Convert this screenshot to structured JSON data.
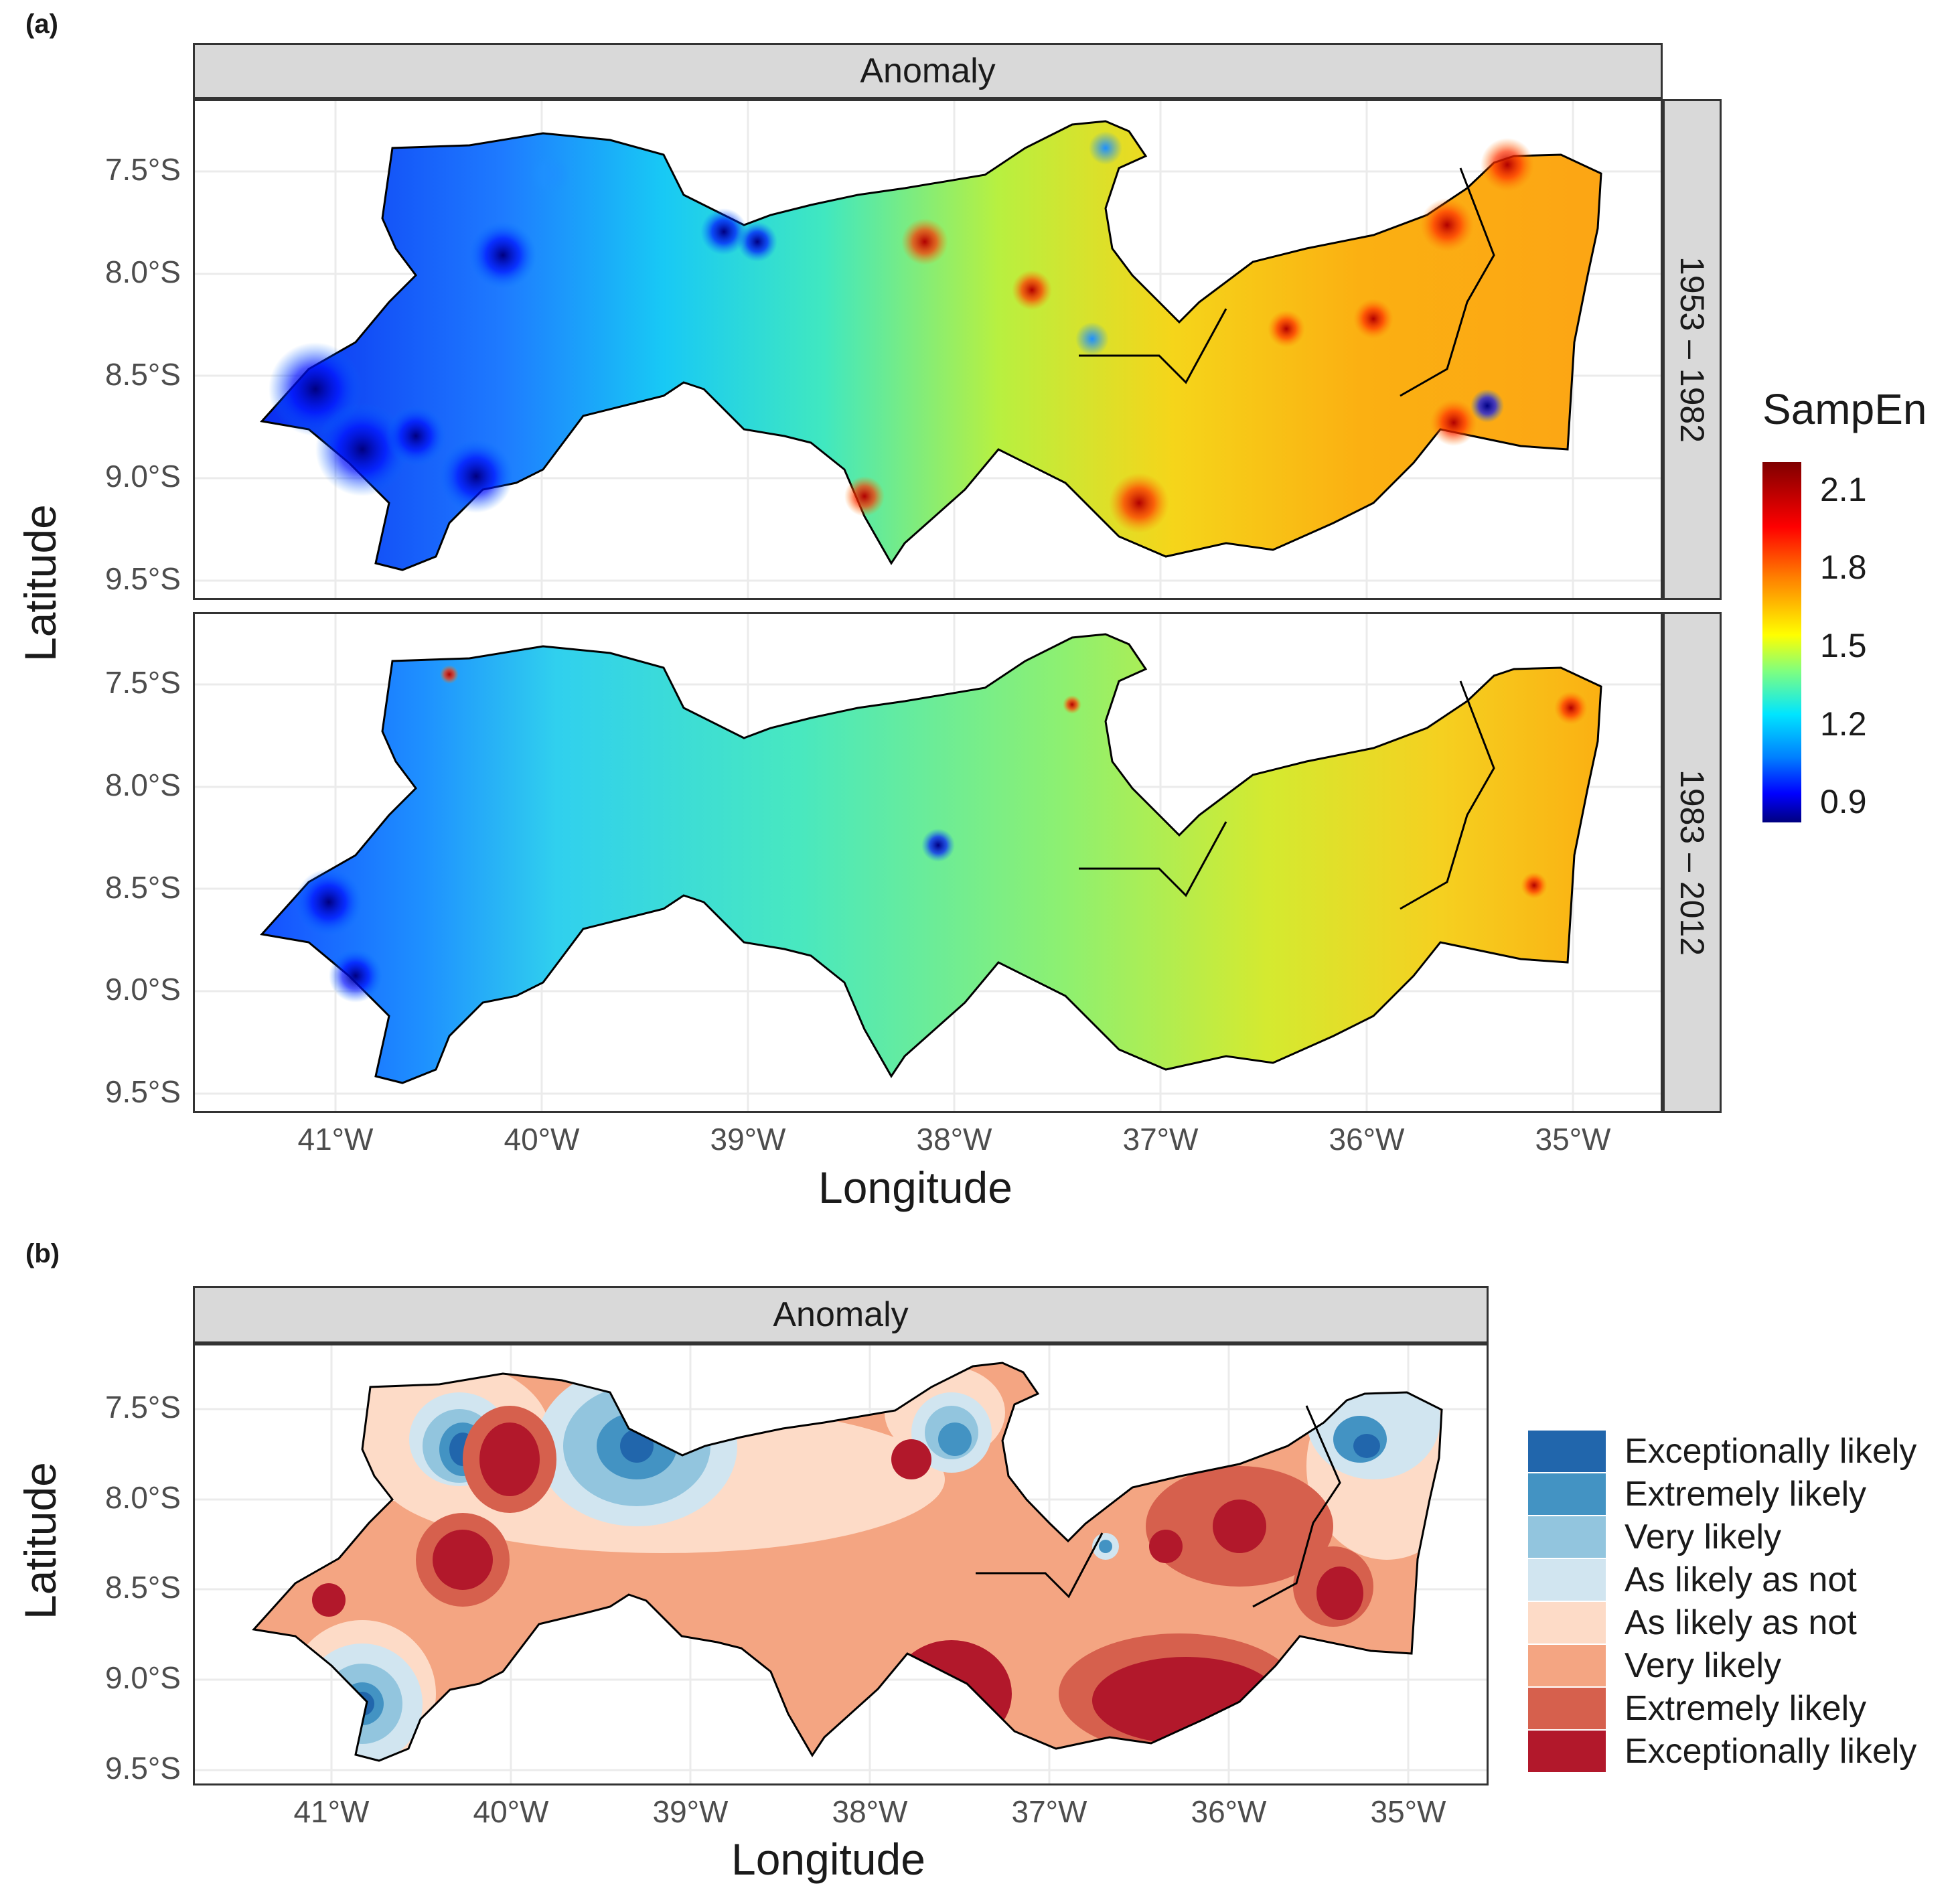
{
  "panel_a": {
    "label": "(a)",
    "facet_top": "Anomaly",
    "facets_right": [
      "1953 – 1982",
      "1983 – 2012"
    ],
    "y_ticks": [
      "7.5°S",
      "8.0°S",
      "8.5°S",
      "9.0°S",
      "9.5°S"
    ],
    "x_ticks": [
      "41°W",
      "40°W",
      "39°W",
      "38°W",
      "37°W",
      "36°W",
      "35°W"
    ],
    "xlabel": "Longitude",
    "ylabel": "Latitude",
    "legend_title": "SampEn",
    "legend_ticks": [
      "2.1",
      "1.8",
      "1.5",
      "1.2",
      "0.9"
    ],
    "colors": [
      "#00007f",
      "#0000ff",
      "#007fff",
      "#00e5ff",
      "#7fff7f",
      "#ffff00",
      "#ff7f00",
      "#ff0000",
      "#7f0000"
    ]
  },
  "panel_b": {
    "label": "(b)",
    "facet_top": "Anomaly",
    "y_ticks": [
      "7.5°S",
      "8.0°S",
      "8.5°S",
      "9.0°S",
      "9.5°S"
    ],
    "x_ticks": [
      "41°W",
      "40°W",
      "39°W",
      "38°W",
      "37°W",
      "36°W",
      "35°W"
    ],
    "xlabel": "Longitude",
    "ylabel": "Latitude",
    "legend": [
      {
        "label": "Exceptionally likely",
        "color": "#2166ac"
      },
      {
        "label": "Extremely likely",
        "color": "#4393c3"
      },
      {
        "label": "Very likely",
        "color": "#92c5de"
      },
      {
        "label": "As likely as not",
        "color": "#d1e5f0"
      },
      {
        "label": "As likely as not",
        "color": "#fddbc7"
      },
      {
        "label": "Very likely",
        "color": "#f4a582"
      },
      {
        "label": "Extremely likely",
        "color": "#d6604d"
      },
      {
        "label": "Exceptionally likely",
        "color": "#b2182b"
      }
    ]
  }
}
